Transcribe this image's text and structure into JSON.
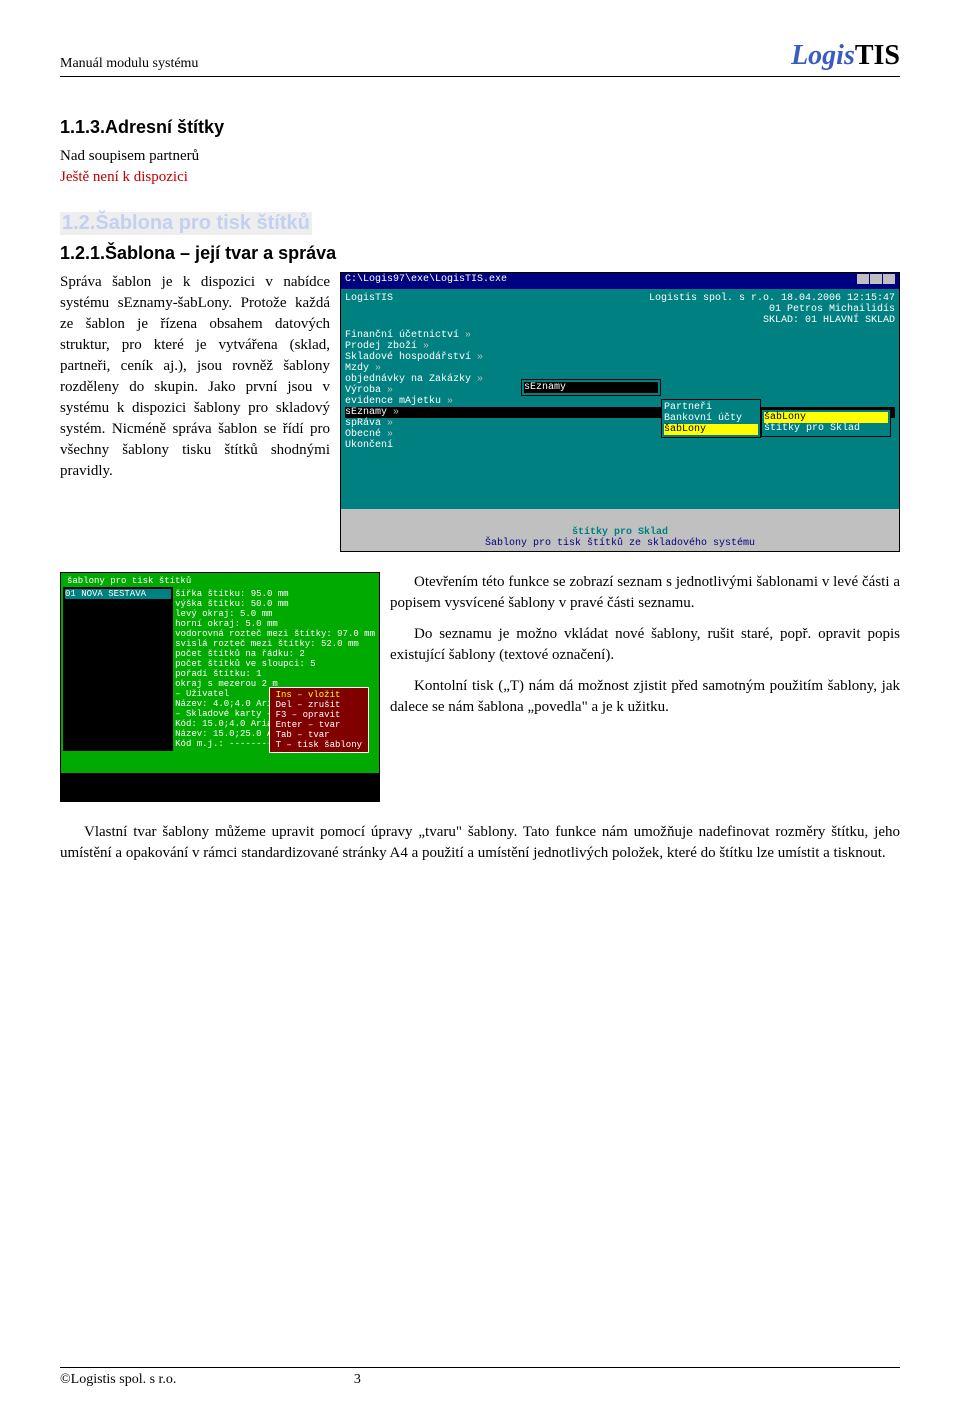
{
  "header": {
    "title": "Manuál modulu systému"
  },
  "logo": {
    "p1": "Logis",
    "p2": "TIS"
  },
  "sec113": {
    "title": "1.1.3.Adresní štítky",
    "line1": "Nad soupisem partnerů",
    "line2": "Ještě není k dispozici"
  },
  "sec12": {
    "title": "1.2.Šablona pro tisk štítků"
  },
  "sec121": {
    "title": "1.2.1.Šablona – její tvar a správa",
    "para1": "Správa šablon je k dispozici v nabídce systému sEznamy-šabLony. Protože každá ze šablon je řízena obsahem datových struktur, pro které je vytvářena (sklad, partneři, ceník aj.), jsou rovněž šablony rozděleny do skupin. Jako první jsou v systému k dispozici šablony pro skladový systém. Nicméně správa šablon se řídí pro všechny šablony tisku štítků shodnými pravidly."
  },
  "shot1": {
    "titlebar": "C:\\Logis97\\exe\\LogisTIS.exe",
    "app": "LogisTIS",
    "right1": "Logistis spol. s r.o. 18.04.2006 12:15:47",
    "right2": "01 Petros Michailidís",
    "right3": "SKLAD: 01 HLAVNÍ SKLAD",
    "menu": [
      "Finanční účetnictví",
      "Prodej zboží",
      "Skladové hospodářství",
      "Mzdy",
      "objednávky na Zakázky",
      "Výroba",
      "evidence mAjetku",
      "sEznamy",
      "",
      "spRáva",
      "Obecné",
      "",
      "Ukončení"
    ],
    "sub1_title": "sEznamy",
    "sub1": [
      "Partneři",
      "Bankovní účty",
      "šabLony"
    ],
    "sub2_title": "šabLony",
    "sub3": [
      "štítky pro Sklad"
    ],
    "status_t": "štítky pro Sklad",
    "status_b": "Šablony pro tisk štítků ze skladového systému"
  },
  "shot2": {
    "title": "šablony pro tisk štítků",
    "left_item": "01 NOVA SESTAVA",
    "props": [
      "šířka štítku: 95.0 mm",
      "výška štítku: 50.0 mm",
      "levý okraj: 5.0 mm",
      "horní okraj: 5.0 mm",
      "vodorovná rozteč mezi štítky: 97.0 mm",
      "svislá rozteč mezi štítky: 52.0 mm",
      "počet štítků na řádku: 2",
      "počet štítků ve sloupci: 5",
      "pořadí štítku: 1",
      "okraj s mezerou 2 m",
      "– Uživatel",
      "Název: 4.0;4.0 Aria",
      "– Skladové karty –",
      "Kód: 15.0;4.0 Aria",
      "Název: 15.0;25.0 A",
      "Kód m.j.: --------"
    ],
    "popup": [
      "Ins – vložit",
      "Del – zrušit",
      "F3  – opravit",
      "Enter – tvar",
      "Tab   – tvar",
      "T   – tisk šablony"
    ]
  },
  "paras": {
    "p1": "Otevřením této funkce se zobrazí seznam s jednotlivými šablonami v levé části a popisem vysvícené šablony v pravé části seznamu.",
    "p2": "Do seznamu je možno vkládat nové šablony, rušit staré, popř. opravit popis existující šablony (textové označení).",
    "p3": "Kontolní tisk („T) nám dá možnost zjistit před samotným použitím šablony, jak dalece se nám šablona „povedla\" a je k užitku.",
    "p4": "Vlastní tvar šablony můžeme upravit pomocí úpravy „tvaru\" šablony. Tato funkce nám umožňuje nadefinovat rozměry štítku, jeho umístění a opakování v rámci standardizované stránky A4 a použití a umístění jednotlivých položek, které do štítku lze umístit a tisknout."
  },
  "footer": {
    "left": "©Logistis spol. s r.o.",
    "page": "3"
  }
}
